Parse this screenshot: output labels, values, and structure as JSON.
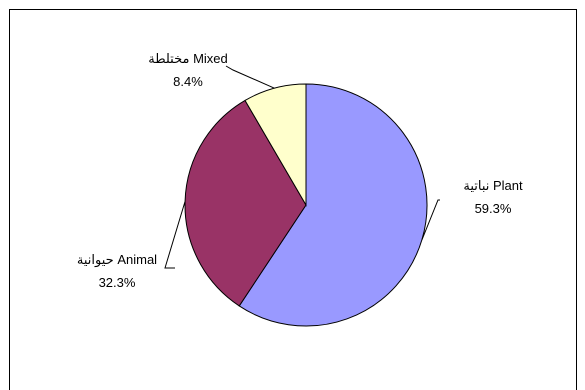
{
  "chart_data": {
    "type": "pie",
    "title": "",
    "legend": "none",
    "slices": [
      {
        "label": "نباتية Plant",
        "value": 59.3,
        "value_label": "59.3%",
        "color": "#9999FF"
      },
      {
        "label": "حيوانية Animal",
        "value": 32.3,
        "value_label": "32.3%",
        "color": "#993366"
      },
      {
        "label": "مختلطة Mixed",
        "value": 8.4,
        "value_label": "8.4%",
        "color": "#FFFFCC"
      }
    ]
  }
}
